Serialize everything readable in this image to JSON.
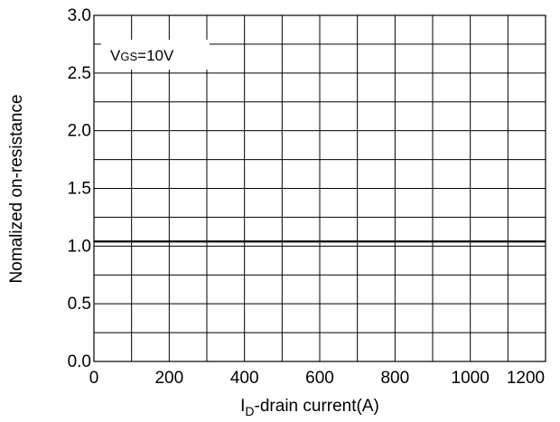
{
  "chart_data": {
    "type": "line",
    "title": "",
    "xlabel_main": "I",
    "xlabel_sub": "D",
    "xlabel_rest": "-drain current(A)",
    "ylabel": "Nomalized on-resistance",
    "xlim": [
      0,
      1200
    ],
    "ylim": [
      0,
      3.0
    ],
    "grid": true,
    "x_ticks": [
      0,
      200,
      400,
      600,
      800,
      1000,
      1200
    ],
    "x_tick_labels": [
      "0",
      "200",
      "400",
      "600",
      "800",
      "1000",
      "1200"
    ],
    "y_ticks": [
      0,
      0.5,
      1.0,
      1.5,
      2.0,
      2.5,
      3.0
    ],
    "y_tick_labels": [
      "0.0",
      "0.5",
      "1.0",
      "1.5",
      "2.0",
      "2.5",
      "3.0"
    ],
    "annotation": {
      "main": "V",
      "sub": "GS",
      "rest": "=10V"
    },
    "series": [
      {
        "x": [
          0,
          1200
        ],
        "y": [
          1.04,
          1.04
        ]
      }
    ]
  }
}
